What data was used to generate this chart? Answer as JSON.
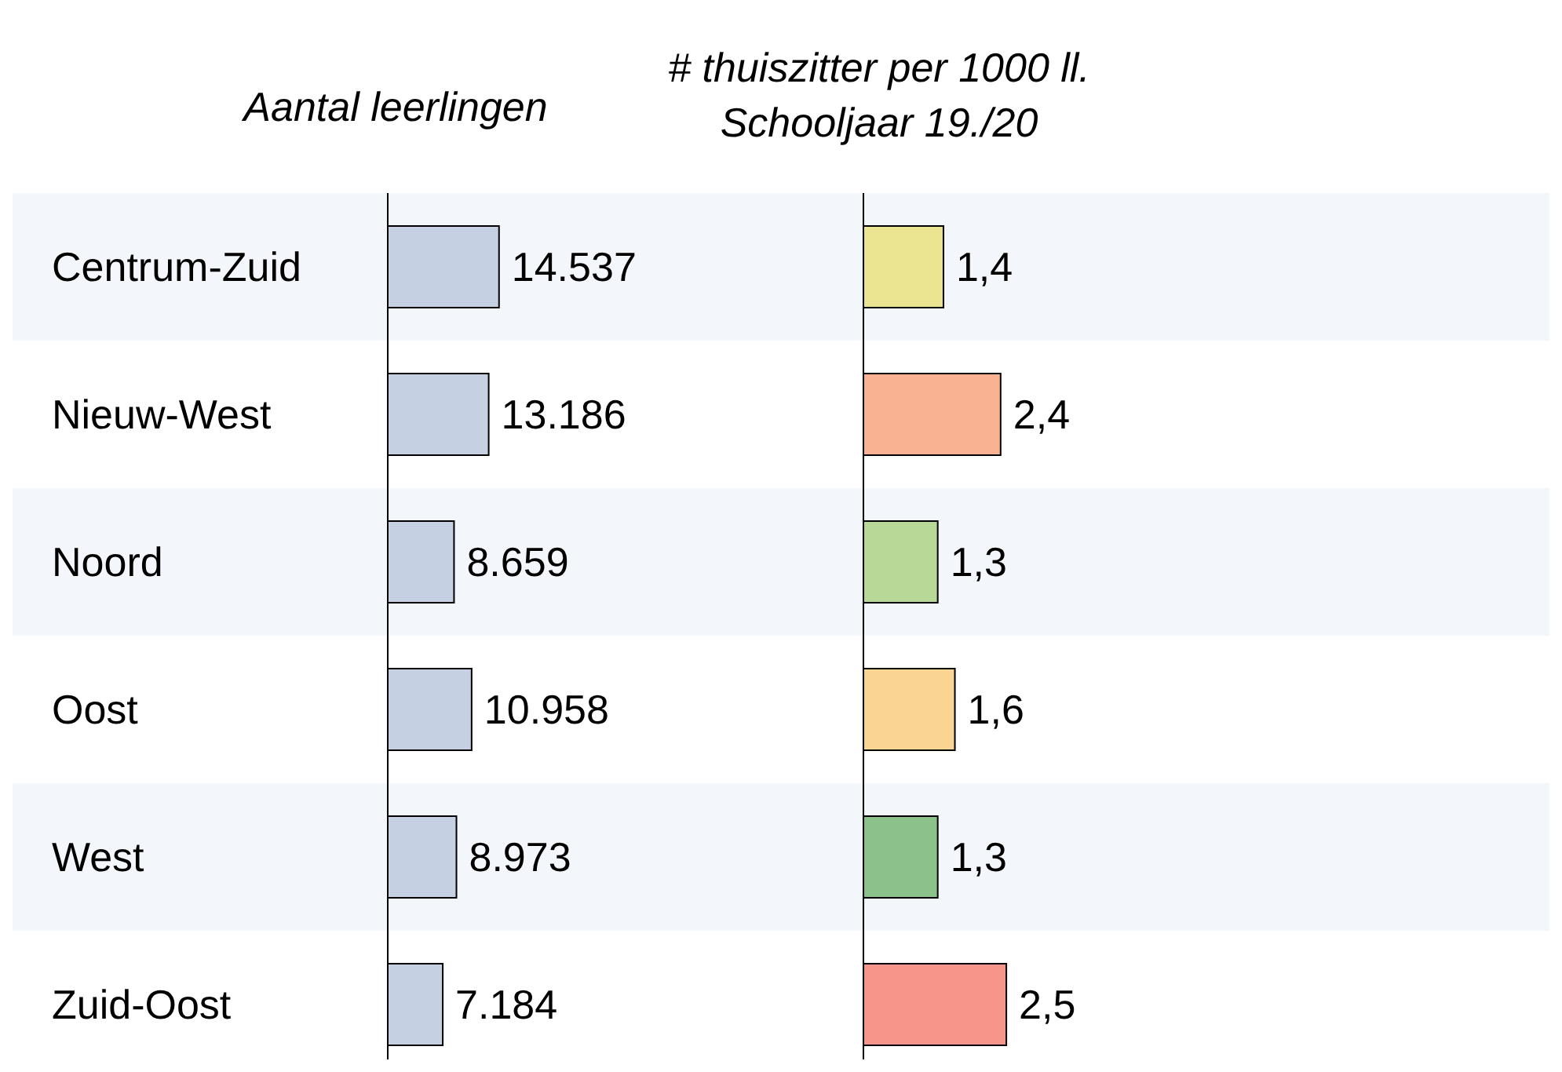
{
  "chart_data": [
    {
      "type": "bar",
      "orientation": "horizontal",
      "title": "Aantal leerlingen",
      "categories": [
        "Centrum-Zuid",
        "Nieuw-West",
        "Noord",
        "Oost",
        "West",
        "Zuid-Oost"
      ],
      "values": [
        14537,
        13186,
        8659,
        10958,
        8973,
        7184
      ],
      "value_labels": [
        "14.537",
        "13.186",
        "8.659",
        "10.958",
        "8.973",
        "7.184"
      ],
      "color": "#c5d0e2",
      "tick_labels": "y"
    },
    {
      "type": "bar",
      "orientation": "horizontal",
      "title": "# thuiszitter per 1000 ll.\nSchooljaar 19./20",
      "values": [
        1.4,
        2.4,
        1.3,
        1.6,
        1.3,
        2.5
      ],
      "value_labels": [
        "1,4",
        "2,4",
        "1,3",
        "1,6",
        "1,3",
        "2,5"
      ],
      "colors": [
        "#ebe592",
        "#f9b393",
        "#b7d896",
        "#f9d493",
        "#8bc18b",
        "#f6958a"
      ],
      "tick_labels": false
    }
  ]
}
